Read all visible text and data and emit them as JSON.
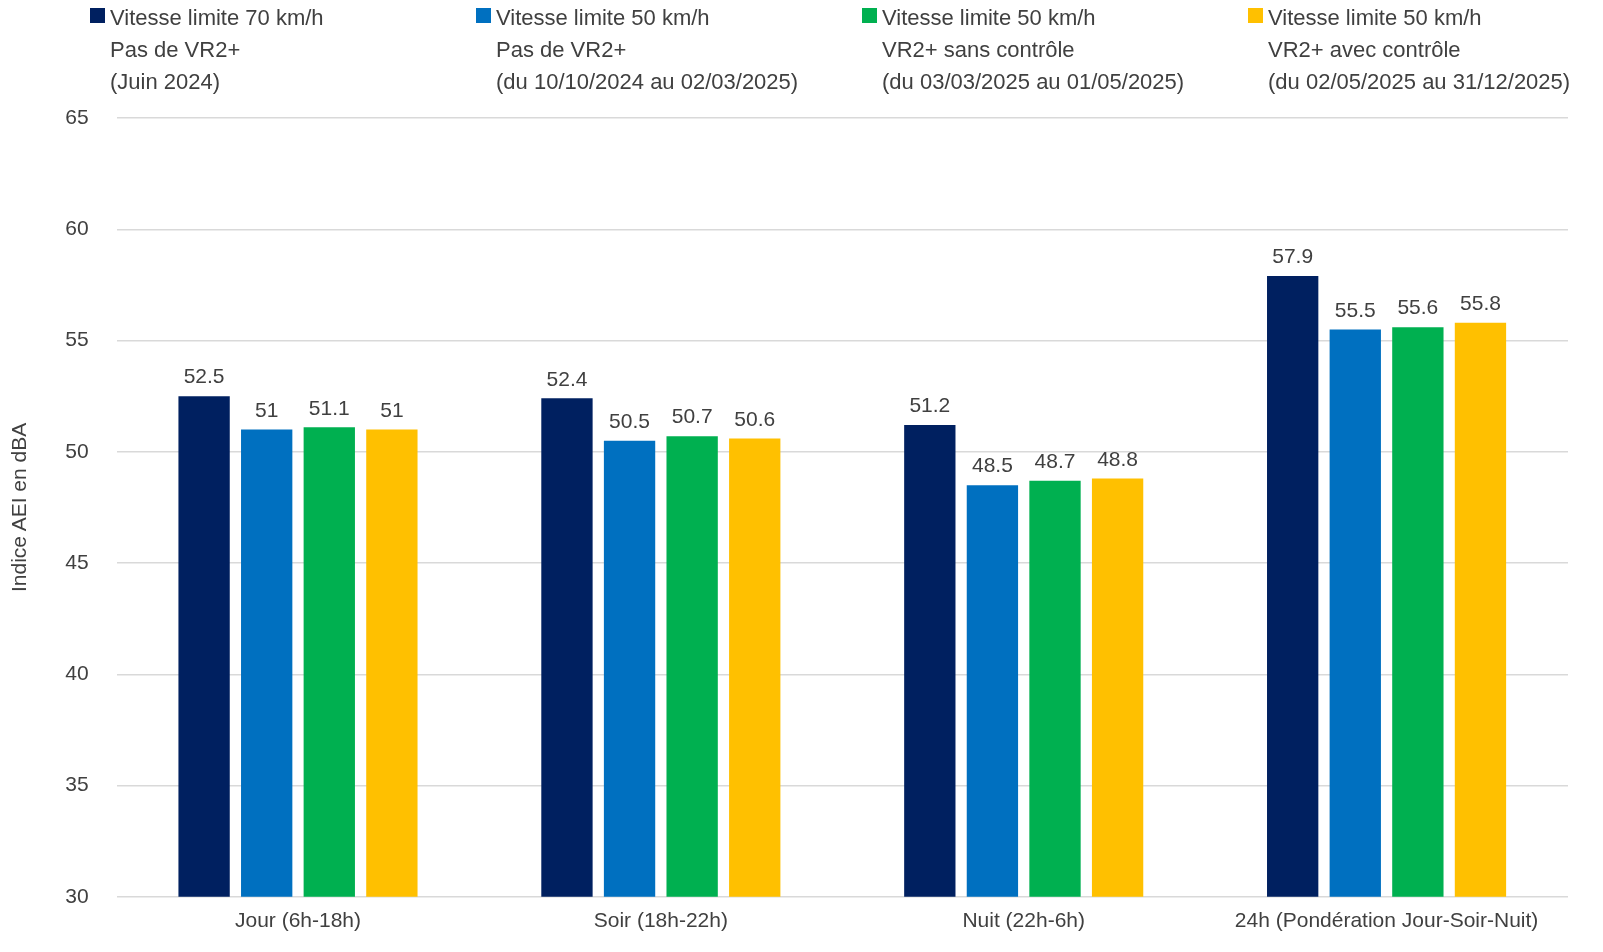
{
  "chart_data": {
    "type": "bar",
    "ylabel": "Indice AEI en dBA",
    "categories": [
      "Jour (6h-18h)",
      "Soir (18h-22h)",
      "Nuit (22h-6h)",
      "24h (Pondération Jour-Soir-Nuit)"
    ],
    "series": [
      {
        "name": "Vitesse limite 70 km/h\nPas de VR2+\n(Juin 2024)",
        "color": "#002060",
        "values": [
          52.5,
          52.4,
          51.2,
          57.9
        ]
      },
      {
        "name": "Vitesse limite 50 km/h\nPas de VR2+\n(du 10/10/2024 au 02/03/2025)",
        "color": "#0070c0",
        "values": [
          51,
          50.5,
          48.5,
          55.5
        ]
      },
      {
        "name": "Vitesse limite 50 km/h\nVR2+ sans contrôle\n(du 03/03/2025 au 01/05/2025)",
        "color": "#00b050",
        "values": [
          51.1,
          50.7,
          48.7,
          55.6
        ]
      },
      {
        "name": "Vitesse limite 50 km/h\nVR2+ avec contrôle\n(du 02/05/2025 au 31/12/2025)",
        "color": "#ffc000",
        "values": [
          51,
          50.6,
          48.8,
          55.8
        ]
      }
    ],
    "ylim": [
      30,
      65
    ],
    "yticks": [
      30,
      35,
      40,
      45,
      50,
      55,
      60,
      65
    ],
    "grid": "y",
    "legend": "top",
    "data_labels": true
  }
}
